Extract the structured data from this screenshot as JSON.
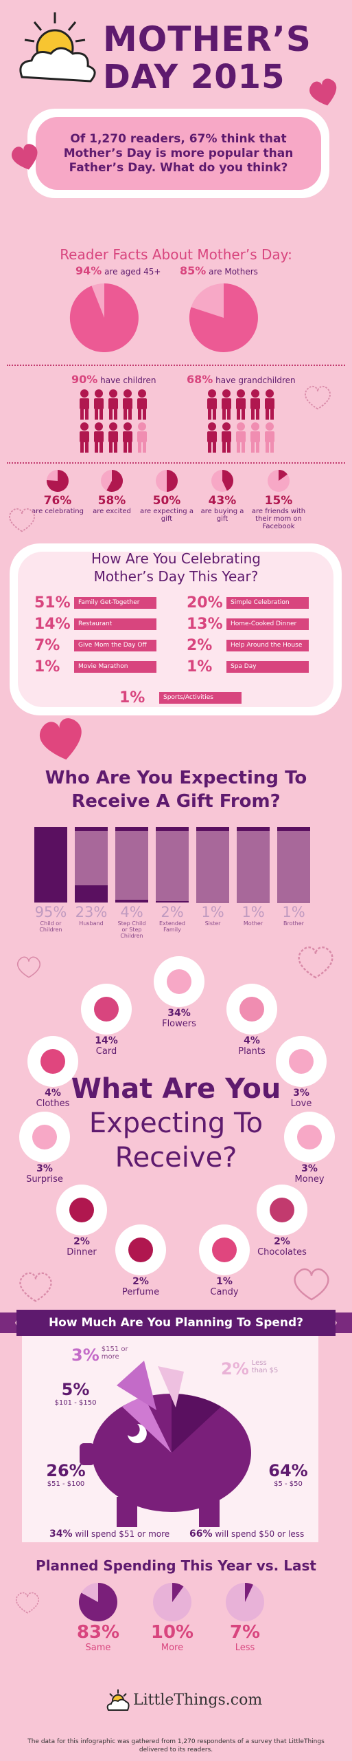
{
  "header": {
    "title_line1": "MOTHER’S",
    "title_line2": "DAY 2015",
    "subtitle": "Of 1,270 readers, 67% think that Mother’s Day is more popular than Father’s Day. What do you think?"
  },
  "reader_facts": {
    "heading": "Reader Facts About Mother’s Day:",
    "aged_pct": "94%",
    "aged_text": "are aged 45+",
    "mothers_pct": "85%",
    "mothers_text": "are Mothers",
    "children_pct": "90%",
    "children_text": "have children",
    "grand_pct": "68%",
    "grand_text": "have grandchildren",
    "stats": [
      {
        "pct": "76%",
        "label": "are celebrating",
        "value": 0.76
      },
      {
        "pct": "58%",
        "label": "are excited",
        "value": 0.58
      },
      {
        "pct": "50%",
        "label": "are expecting a gift",
        "value": 0.5
      },
      {
        "pct": "43%",
        "label": "are buying a gift",
        "value": 0.43
      },
      {
        "pct": "15%",
        "label": "are friends with their mom on Facebook",
        "value": 0.15
      }
    ]
  },
  "celebrating": {
    "heading_line1": "How Are You Celebrating",
    "heading_line2": "Mother’s Day This Year?",
    "left": [
      {
        "pct": "51%",
        "label": "Family Get-Together"
      },
      {
        "pct": "14%",
        "label": "Restaurant"
      },
      {
        "pct": "7%",
        "label": "Give Mom the Day Off"
      },
      {
        "pct": "1%",
        "label": "Movie Marathon"
      }
    ],
    "right": [
      {
        "pct": "20%",
        "label": "Simple Celebration"
      },
      {
        "pct": "13%",
        "label": "Home-Cooked Dinner"
      },
      {
        "pct": "2%",
        "label": "Help Around the House"
      },
      {
        "pct": "1%",
        "label": "Spa Day"
      }
    ],
    "bottom": {
      "pct": "1%",
      "label": "Sports/Activities"
    }
  },
  "gift_from": {
    "heading_line1": "Who Are You Expecting To",
    "heading_line2": "Receive A Gift From?",
    "items": [
      {
        "pct": "95%",
        "label": "Child or Children",
        "value": 95
      },
      {
        "pct": "23%",
        "label": "Husband",
        "value": 23
      },
      {
        "pct": "4%",
        "label": "Step Child or Step Children",
        "value": 4
      },
      {
        "pct": "2%",
        "label": "Extended Family",
        "value": 2
      },
      {
        "pct": "1%",
        "label": "Sister",
        "value": 1
      },
      {
        "pct": "1%",
        "label": "Mother",
        "value": 1
      },
      {
        "pct": "1%",
        "label": "Brother",
        "value": 1
      }
    ]
  },
  "receive": {
    "heading_line1": "What Are You",
    "heading_line2": "Expecting To",
    "heading_line3": "Receive?",
    "items": [
      {
        "pct": "14%",
        "label": "Card"
      },
      {
        "pct": "34%",
        "label": "Flowers"
      },
      {
        "pct": "4%",
        "label": "Plants"
      },
      {
        "pct": "4%",
        "label": "Clothes"
      },
      {
        "pct": "3%",
        "label": "Love"
      },
      {
        "pct": "3%",
        "label": "Surprise"
      },
      {
        "pct": "3%",
        "label": "Money"
      },
      {
        "pct": "2%",
        "label": "Dinner"
      },
      {
        "pct": "2%",
        "label": "Chocolates"
      },
      {
        "pct": "2%",
        "label": "Perfume"
      },
      {
        "pct": "1%",
        "label": "Candy"
      }
    ]
  },
  "spend": {
    "heading": "How Much Are You Planning To Spend?",
    "s1_pct": "3%",
    "s1_label": "$151 or more",
    "s2_pct": "2%",
    "s2_label": "Less than $5",
    "s3_pct": "5%",
    "s3_label": "$101 - $150",
    "s4_pct": "26%",
    "s4_label": "$51 - $100",
    "s5_pct": "64%",
    "s5_label": "$5 - $50",
    "more_pct": "34%",
    "more_text": "will spend $51 or more",
    "less_pct": "66%",
    "less_text": "will spend $50 or less"
  },
  "planned": {
    "heading": "Planned Spending This Year vs. Last",
    "items": [
      {
        "pct": "83%",
        "label": "Same",
        "value": 0.83
      },
      {
        "pct": "10%",
        "label": "More",
        "value": 0.1
      },
      {
        "pct": "7%",
        "label": "Less",
        "value": 0.07
      }
    ]
  },
  "footer": {
    "logo": "LittleThings.com",
    "note": "The data for this infographic was gathered from 1,270 respondents of a survey that LittleThings delivered to its readers."
  },
  "colors": {
    "accent": "#d8457e",
    "purple": "#5e1a6e",
    "bg": "#f8c6d6"
  }
}
